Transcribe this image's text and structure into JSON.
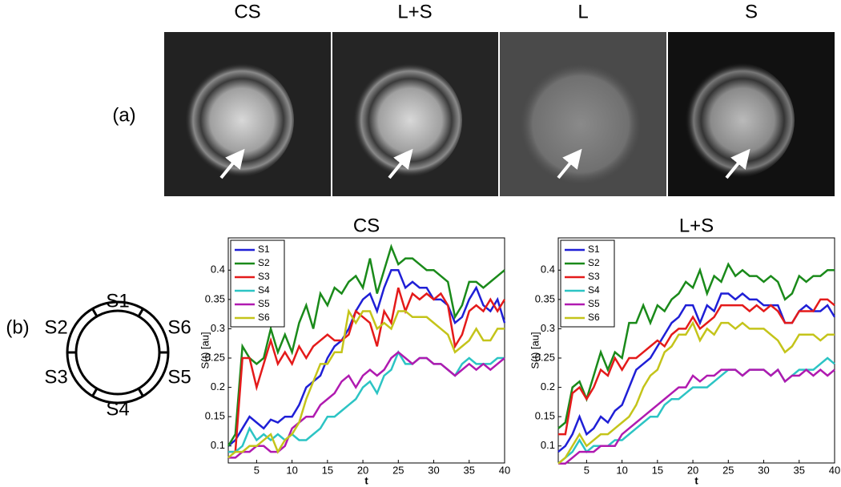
{
  "panel_a": {
    "label": "(a)",
    "image_titles": [
      "CS",
      "L+S",
      "L",
      "S"
    ]
  },
  "panel_b": {
    "label": "(b)",
    "segments": [
      "S1",
      "S2",
      "S3",
      "S4",
      "S5",
      "S6"
    ]
  },
  "chart_data": [
    {
      "type": "line",
      "title": "CS",
      "x_label": "t",
      "y_label": "S(t) [au]",
      "legend": "upper left",
      "x": [
        1,
        2,
        3,
        4,
        5,
        6,
        7,
        8,
        9,
        10,
        11,
        12,
        13,
        14,
        15,
        16,
        17,
        18,
        19,
        20,
        21,
        22,
        23,
        24,
        25,
        26,
        27,
        28,
        29,
        30,
        31,
        32,
        33,
        34,
        35,
        36,
        37,
        38,
        39,
        40
      ],
      "xlim": [
        1,
        40
      ],
      "xticks": [
        5,
        10,
        15,
        20,
        25,
        30,
        35,
        40
      ],
      "ylim": [
        0.071,
        0.455
      ],
      "yticks": [
        0.1,
        0.15,
        0.2,
        0.25,
        0.3,
        0.35,
        0.4
      ],
      "series": [
        {
          "name": "S1",
          "color": "#1f1fd6",
          "values": [
            0.1,
            0.11,
            0.13,
            0.15,
            0.14,
            0.13,
            0.145,
            0.14,
            0.15,
            0.15,
            0.17,
            0.2,
            0.21,
            0.22,
            0.25,
            0.27,
            0.28,
            0.3,
            0.33,
            0.35,
            0.36,
            0.33,
            0.37,
            0.4,
            0.4,
            0.37,
            0.38,
            0.37,
            0.37,
            0.35,
            0.35,
            0.34,
            0.31,
            0.32,
            0.35,
            0.37,
            0.34,
            0.33,
            0.35,
            0.31
          ]
        },
        {
          "name": "S2",
          "color": "#1a8a1a",
          "values": [
            0.1,
            0.12,
            0.27,
            0.25,
            0.24,
            0.25,
            0.3,
            0.26,
            0.29,
            0.26,
            0.31,
            0.34,
            0.3,
            0.36,
            0.34,
            0.37,
            0.36,
            0.38,
            0.39,
            0.37,
            0.42,
            0.36,
            0.4,
            0.44,
            0.41,
            0.42,
            0.42,
            0.41,
            0.4,
            0.4,
            0.39,
            0.38,
            0.32,
            0.34,
            0.38,
            0.38,
            0.37,
            0.38,
            0.39,
            0.4
          ]
        },
        {
          "name": "S3",
          "color": "#e41a1a",
          "values": [
            0.09,
            0.09,
            0.25,
            0.25,
            0.2,
            0.24,
            0.28,
            0.24,
            0.26,
            0.24,
            0.27,
            0.25,
            0.27,
            0.28,
            0.29,
            0.28,
            0.28,
            0.29,
            0.33,
            0.32,
            0.31,
            0.27,
            0.33,
            0.31,
            0.37,
            0.33,
            0.36,
            0.35,
            0.36,
            0.35,
            0.36,
            0.34,
            0.27,
            0.29,
            0.33,
            0.34,
            0.33,
            0.35,
            0.33,
            0.35
          ]
        },
        {
          "name": "S4",
          "color": "#2cc4c4",
          "values": [
            0.09,
            0.09,
            0.1,
            0.13,
            0.11,
            0.12,
            0.11,
            0.12,
            0.11,
            0.12,
            0.11,
            0.11,
            0.12,
            0.13,
            0.15,
            0.15,
            0.16,
            0.17,
            0.18,
            0.2,
            0.21,
            0.19,
            0.22,
            0.23,
            0.26,
            0.24,
            0.24,
            0.25,
            0.25,
            0.24,
            0.24,
            0.23,
            0.22,
            0.24,
            0.25,
            0.24,
            0.24,
            0.24,
            0.25,
            0.25
          ]
        },
        {
          "name": "S5",
          "color": "#b01ab0",
          "values": [
            0.08,
            0.08,
            0.09,
            0.09,
            0.1,
            0.1,
            0.09,
            0.09,
            0.1,
            0.13,
            0.14,
            0.15,
            0.15,
            0.17,
            0.18,
            0.19,
            0.21,
            0.22,
            0.2,
            0.22,
            0.23,
            0.22,
            0.23,
            0.25,
            0.26,
            0.25,
            0.24,
            0.25,
            0.25,
            0.24,
            0.24,
            0.23,
            0.22,
            0.23,
            0.24,
            0.23,
            0.24,
            0.23,
            0.24,
            0.25
          ]
        },
        {
          "name": "S6",
          "color": "#c4c41a",
          "values": [
            0.08,
            0.09,
            0.09,
            0.1,
            0.1,
            0.11,
            0.12,
            0.09,
            0.11,
            0.12,
            0.14,
            0.18,
            0.21,
            0.24,
            0.24,
            0.26,
            0.26,
            0.33,
            0.31,
            0.33,
            0.33,
            0.3,
            0.31,
            0.3,
            0.33,
            0.33,
            0.32,
            0.32,
            0.32,
            0.31,
            0.3,
            0.29,
            0.26,
            0.27,
            0.28,
            0.3,
            0.28,
            0.28,
            0.3,
            0.3
          ]
        }
      ]
    },
    {
      "type": "line",
      "title": "L+S",
      "x_label": "t",
      "y_label": "S(t) [au]",
      "legend": "upper left",
      "x": [
        1,
        2,
        3,
        4,
        5,
        6,
        7,
        8,
        9,
        10,
        11,
        12,
        13,
        14,
        15,
        16,
        17,
        18,
        19,
        20,
        21,
        22,
        23,
        24,
        25,
        26,
        27,
        28,
        29,
        30,
        31,
        32,
        33,
        34,
        35,
        36,
        37,
        38,
        39,
        40
      ],
      "xlim": [
        1,
        40
      ],
      "xticks": [
        5,
        10,
        15,
        20,
        25,
        30,
        35,
        40
      ],
      "ylim": [
        0.071,
        0.455
      ],
      "yticks": [
        0.1,
        0.15,
        0.2,
        0.25,
        0.3,
        0.35,
        0.4
      ],
      "series": [
        {
          "name": "S1",
          "color": "#1f1fd6",
          "values": [
            0.09,
            0.1,
            0.12,
            0.15,
            0.12,
            0.13,
            0.15,
            0.14,
            0.16,
            0.17,
            0.2,
            0.23,
            0.24,
            0.25,
            0.27,
            0.29,
            0.31,
            0.32,
            0.34,
            0.34,
            0.31,
            0.34,
            0.33,
            0.36,
            0.36,
            0.35,
            0.36,
            0.35,
            0.35,
            0.34,
            0.34,
            0.34,
            0.31,
            0.31,
            0.33,
            0.34,
            0.33,
            0.33,
            0.34,
            0.32
          ]
        },
        {
          "name": "S2",
          "color": "#1a8a1a",
          "values": [
            0.13,
            0.14,
            0.2,
            0.21,
            0.18,
            0.22,
            0.26,
            0.23,
            0.26,
            0.25,
            0.31,
            0.31,
            0.34,
            0.31,
            0.34,
            0.33,
            0.35,
            0.36,
            0.38,
            0.37,
            0.4,
            0.36,
            0.39,
            0.38,
            0.41,
            0.39,
            0.4,
            0.39,
            0.39,
            0.38,
            0.39,
            0.38,
            0.35,
            0.36,
            0.39,
            0.38,
            0.39,
            0.39,
            0.4,
            0.4
          ]
        },
        {
          "name": "S3",
          "color": "#e41a1a",
          "values": [
            0.12,
            0.12,
            0.19,
            0.2,
            0.18,
            0.2,
            0.23,
            0.22,
            0.25,
            0.23,
            0.25,
            0.25,
            0.26,
            0.27,
            0.28,
            0.27,
            0.29,
            0.3,
            0.3,
            0.32,
            0.3,
            0.31,
            0.32,
            0.34,
            0.34,
            0.34,
            0.34,
            0.33,
            0.34,
            0.33,
            0.34,
            0.33,
            0.31,
            0.31,
            0.33,
            0.33,
            0.33,
            0.35,
            0.35,
            0.34
          ]
        },
        {
          "name": "S4",
          "color": "#2cc4c4",
          "values": [
            0.07,
            0.08,
            0.09,
            0.11,
            0.09,
            0.1,
            0.1,
            0.1,
            0.11,
            0.11,
            0.12,
            0.13,
            0.14,
            0.15,
            0.15,
            0.17,
            0.18,
            0.18,
            0.19,
            0.2,
            0.2,
            0.2,
            0.21,
            0.22,
            0.23,
            0.23,
            0.22,
            0.23,
            0.23,
            0.23,
            0.22,
            0.23,
            0.21,
            0.22,
            0.23,
            0.23,
            0.23,
            0.24,
            0.25,
            0.24
          ]
        },
        {
          "name": "S5",
          "color": "#b01ab0",
          "values": [
            0.07,
            0.07,
            0.08,
            0.09,
            0.09,
            0.09,
            0.1,
            0.1,
            0.1,
            0.12,
            0.13,
            0.14,
            0.15,
            0.16,
            0.17,
            0.18,
            0.19,
            0.2,
            0.2,
            0.22,
            0.21,
            0.22,
            0.22,
            0.23,
            0.23,
            0.23,
            0.22,
            0.23,
            0.23,
            0.23,
            0.22,
            0.23,
            0.21,
            0.22,
            0.22,
            0.23,
            0.22,
            0.23,
            0.22,
            0.23
          ]
        },
        {
          "name": "S6",
          "color": "#c4c41a",
          "values": [
            0.07,
            0.08,
            0.1,
            0.12,
            0.1,
            0.11,
            0.12,
            0.12,
            0.13,
            0.14,
            0.15,
            0.17,
            0.2,
            0.22,
            0.23,
            0.26,
            0.27,
            0.29,
            0.29,
            0.31,
            0.28,
            0.3,
            0.29,
            0.31,
            0.31,
            0.3,
            0.31,
            0.3,
            0.3,
            0.3,
            0.29,
            0.28,
            0.26,
            0.27,
            0.29,
            0.29,
            0.29,
            0.28,
            0.29,
            0.29
          ]
        }
      ]
    }
  ]
}
